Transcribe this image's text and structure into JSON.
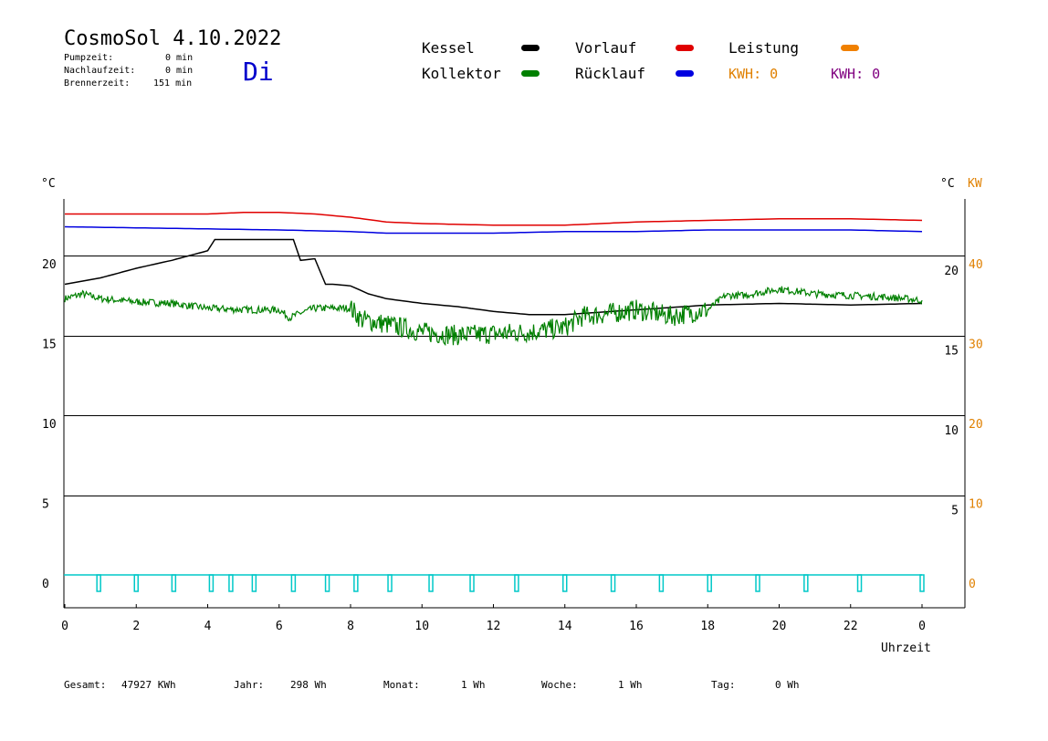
{
  "header": {
    "title": "CosmoSol 4.10.2022",
    "weekday": "Di",
    "stats": [
      {
        "label": "Pumpzeit:",
        "value": "0 min"
      },
      {
        "label": "Nachlaufzeit:",
        "value": "0 min"
      },
      {
        "label": "Brennerzeit:",
        "value": "151 min"
      }
    ]
  },
  "legend": {
    "kessel": {
      "label": "Kessel",
      "color": "#000000"
    },
    "kollektor": {
      "label": "Kollektor",
      "color": "#008000"
    },
    "vorlauf": {
      "label": "Vorlauf",
      "color": "#e00000"
    },
    "ruecklauf": {
      "label": "Rücklauf",
      "color": "#0000e0"
    },
    "leistung": {
      "label": "Leistung",
      "color": "#f08000"
    },
    "kwh_orange": {
      "label": "KWH: 0",
      "color": "#e08000"
    },
    "kwh_purple": {
      "label": "KWH: 0",
      "color": "#800080"
    }
  },
  "footer": [
    {
      "label": "Gesamt:",
      "value": "47927 KWh"
    },
    {
      "label": "Jahr:",
      "value": "298 Wh"
    },
    {
      "label": "Monat:",
      "value": "1 Wh"
    },
    {
      "label": "Woche:",
      "value": "1 Wh"
    },
    {
      "label": "Tag:",
      "value": "0 Wh"
    }
  ],
  "chart_data": {
    "type": "line",
    "xlabel": "Uhrzeit",
    "y_left_unit": "°C",
    "y_right_unit": "°C",
    "y_right2_unit": "KW",
    "x_ticks": [
      "0",
      "2",
      "4",
      "6",
      "8",
      "10",
      "12",
      "14",
      "16",
      "18",
      "20",
      "22",
      "0"
    ],
    "y_left_ticks": [
      "20",
      "15",
      "10",
      "5",
      "0"
    ],
    "y_right_ticks": [
      "20",
      "15",
      "10",
      "5"
    ],
    "kw_ticks": [
      "40",
      "30",
      "20",
      "10",
      "0"
    ],
    "xlim": [
      0,
      24
    ],
    "ylim": [
      -2,
      24
    ],
    "grid": "horizontal",
    "series": [
      {
        "key": "vorlauf",
        "color": "#e00000",
        "x": [
          0,
          3,
          4,
          5,
          6,
          7,
          8,
          9,
          10,
          12,
          14,
          16,
          18,
          20,
          22,
          24
        ],
        "y": [
          22.6,
          22.6,
          22.6,
          22.7,
          22.7,
          22.6,
          22.4,
          22.1,
          22.0,
          21.9,
          21.9,
          22.1,
          22.2,
          22.3,
          22.3,
          22.2
        ]
      },
      {
        "key": "ruecklauf",
        "color": "#0000e0",
        "x": [
          0,
          3,
          6,
          8,
          9,
          10,
          12,
          14,
          16,
          18,
          20,
          22,
          24
        ],
        "y": [
          21.8,
          21.7,
          21.6,
          21.5,
          21.4,
          21.4,
          21.4,
          21.5,
          21.5,
          21.6,
          21.6,
          21.6,
          21.5
        ]
      },
      {
        "key": "kessel",
        "color": "#000000",
        "x": [
          0,
          1,
          2,
          3,
          4,
          4.2,
          6.4,
          6.6,
          7.0,
          7.3,
          7.5,
          8.0,
          8.5,
          9.0,
          10,
          11,
          12,
          13,
          14,
          16,
          18,
          20,
          22,
          24
        ],
        "y": [
          18.2,
          18.6,
          19.2,
          19.7,
          20.3,
          21.0,
          21.0,
          19.7,
          19.8,
          18.2,
          18.2,
          18.1,
          17.6,
          17.3,
          17.0,
          16.8,
          16.5,
          16.3,
          16.3,
          16.6,
          16.9,
          17.0,
          16.9,
          17.0
        ],
        "note": "values above the 20 gridline clipped at the plot area"
      },
      {
        "key": "kollektor",
        "color": "#008000",
        "x": [
          0,
          0.5,
          1,
          2,
          3,
          4,
          5,
          6,
          6.3,
          6.6,
          7,
          8,
          8.3,
          9,
          10,
          11,
          12,
          13,
          14,
          14.5,
          15,
          16,
          17,
          18,
          18.5,
          19,
          20,
          21,
          22,
          23,
          24
        ],
        "y": [
          17.3,
          17.6,
          17.3,
          17.1,
          17.0,
          16.7,
          16.6,
          16.6,
          16.1,
          16.4,
          16.7,
          16.7,
          16.0,
          15.7,
          15.2,
          15.0,
          15.1,
          15.2,
          15.5,
          16.2,
          16.3,
          16.6,
          16.2,
          16.6,
          17.5,
          17.5,
          17.9,
          17.6,
          17.5,
          17.4,
          17.2
        ]
      },
      {
        "key": "pumpe",
        "color": "#00c8c8",
        "pulses_x": [
          0.95,
          2.0,
          3.05,
          4.1,
          4.65,
          5.3,
          6.4,
          7.35,
          8.15,
          9.1,
          10.25,
          11.4,
          12.65,
          14.0,
          15.35,
          16.7,
          18.05,
          19.4,
          20.75,
          22.25,
          24.0
        ],
        "level": 0
      }
    ]
  }
}
